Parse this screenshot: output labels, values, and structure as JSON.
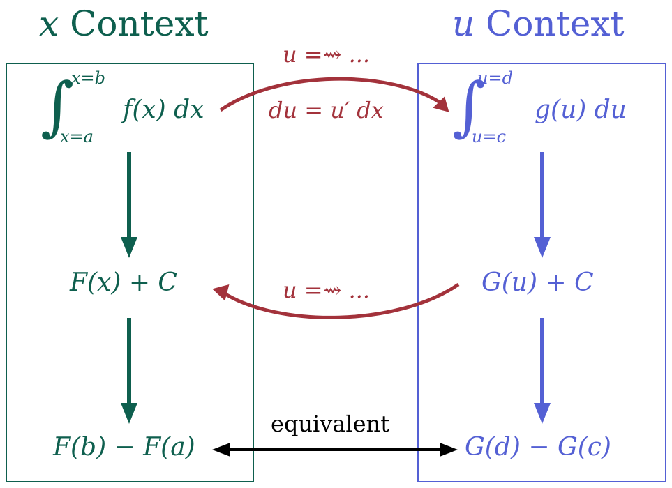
{
  "colors": {
    "x_context": "#0e5f4e",
    "u_context": "#5460d4",
    "substitution": "#a3323b",
    "equivalence": "#000000"
  },
  "x_context": {
    "heading_var": "x",
    "heading_word": "Context",
    "integral": {
      "upper_limit": "x=b",
      "lower_limit": "x=a",
      "integrand": "f(x) dx"
    },
    "antiderivative": "F(x) + C",
    "evaluation": "F(b) − F(a)"
  },
  "u_context": {
    "heading_var": "u",
    "heading_word": "Context",
    "integral": {
      "upper_limit": "u=d",
      "lower_limit": "u=c",
      "integrand": "g(u) du"
    },
    "antiderivative": "G(u) + C",
    "evaluation": "G(d) − G(c)"
  },
  "substitution": {
    "forward_label": "u =⇝ ...",
    "differential_label": "du = u′ dx",
    "back_label": "u =⇝ ..."
  },
  "equivalence_label": "equivalent"
}
